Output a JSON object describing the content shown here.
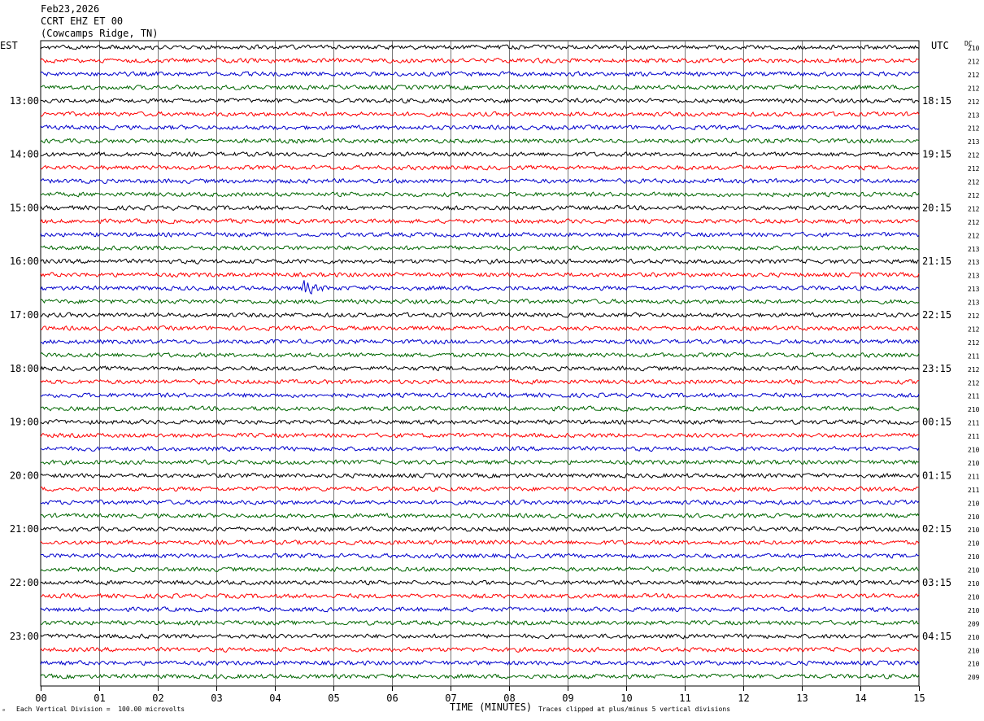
{
  "header": {
    "date": "Feb23,2026",
    "station": "CCRT EHZ ET 00",
    "location": "(Cowcamps Ridge, TN)"
  },
  "left_timezone": "EST",
  "right_timezone": "UTC",
  "dc_label": "DC",
  "footer": {
    "scale_note": "Each Vertical Division =  100.00 microvolts",
    "clip_note": "Traces clipped at plus/minus 5 vertical divisions",
    "corner_mark": "ᵃ"
  },
  "colors": [
    "#000000",
    "#ff0000",
    "#0000cc",
    "#006600"
  ],
  "chart_data": {
    "type": "line",
    "title": "",
    "xlabel": "TIME (MINUTES)",
    "ylabel": "",
    "xlim": [
      0,
      15
    ],
    "x_ticks": [
      "00",
      "01",
      "02",
      "03",
      "04",
      "05",
      "06",
      "07",
      "08",
      "09",
      "10",
      "11",
      "12",
      "13",
      "14",
      "15"
    ],
    "left_hour_labels": [
      "13:00",
      "14:00",
      "15:00",
      "16:00",
      "17:00",
      "18:00",
      "19:00",
      "20:00",
      "21:00",
      "22:00",
      "23:00"
    ],
    "right_hour_labels": [
      "18:15",
      "19:15",
      "20:15",
      "21:15",
      "22:15",
      "23:15",
      "00:15",
      "01:15",
      "02:15",
      "03:15",
      "04:15"
    ],
    "dc_offsets": [
      "210",
      "212",
      "212",
      "212",
      "212",
      "213",
      "212",
      "213",
      "212",
      "212",
      "212",
      "212",
      "212",
      "212",
      "212",
      "213",
      "213",
      "213",
      "213",
      "213",
      "212",
      "212",
      "212",
      "211",
      "212",
      "212",
      "211",
      "210",
      "211",
      "211",
      "210",
      "210",
      "211",
      "211",
      "210",
      "210",
      "210",
      "210",
      "210",
      "210",
      "210",
      "210",
      "210",
      "209",
      "210",
      "210",
      "210",
      "209"
    ],
    "num_traces": 48,
    "event": {
      "trace_index": 18,
      "minute": 4.5,
      "amplitude": 3
    }
  }
}
